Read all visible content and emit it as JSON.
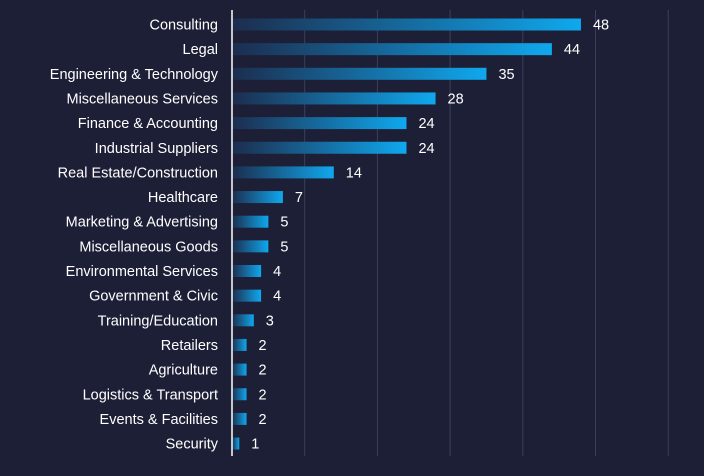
{
  "chart_data": {
    "type": "bar",
    "orientation": "horizontal",
    "categories": [
      "Consulting",
      "Legal",
      "Engineering & Technology",
      "Miscellaneous Services",
      "Finance & Accounting",
      "Industrial Suppliers",
      "Real Estate/Construction",
      "Healthcare",
      "Marketing & Advertising",
      "Miscellaneous Goods",
      "Environmental Services",
      "Government & Civic",
      "Training/Education",
      "Retailers",
      "Agriculture",
      "Logistics & Transport",
      "Events & Facilities",
      "Security"
    ],
    "values": [
      48,
      44,
      35,
      28,
      24,
      24,
      14,
      7,
      5,
      5,
      4,
      4,
      3,
      2,
      2,
      2,
      2,
      1
    ],
    "value_labels": [
      "48",
      "44",
      "35",
      "28",
      "24",
      "24",
      "14",
      "7",
      "5",
      "5",
      "4",
      "4",
      "3",
      "2",
      "2",
      "2",
      "2",
      "1"
    ],
    "title": "",
    "xlabel": "",
    "ylabel": "",
    "xlim": [
      0,
      60
    ],
    "grid": true,
    "legend": "none",
    "colors": {
      "background": "#1c1f36",
      "bar_start": "#1c2d4e",
      "bar_end": "#0fa8ee",
      "gridline": "#3a3f5c",
      "axis": "#ffffff",
      "text": "#ffffff"
    }
  }
}
